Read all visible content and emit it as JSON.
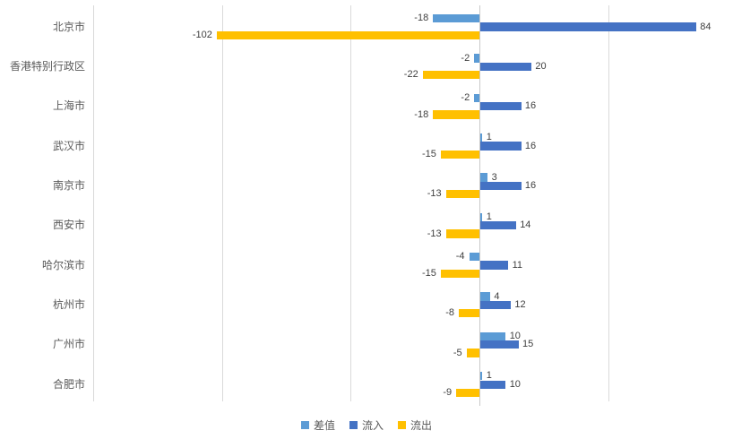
{
  "chart_data": {
    "type": "bar",
    "orientation": "horizontal",
    "title": "",
    "categories": [
      "北京市",
      "香港特别行政区",
      "上海市",
      "武汉市",
      "南京市",
      "西安市",
      "哈尔滨市",
      "杭州市",
      "广州市",
      "合肥市"
    ],
    "series": [
      {
        "name": "差值",
        "color": "#5B9BD5",
        "values": [
          -18,
          -2,
          -2,
          1,
          3,
          1,
          -4,
          4,
          10,
          1
        ]
      },
      {
        "name": "流入",
        "color": "#4472C4",
        "values": [
          84,
          20,
          16,
          16,
          16,
          14,
          11,
          12,
          15,
          10
        ]
      },
      {
        "name": "流出",
        "color": "#FFC000",
        "values": [
          -102,
          -22,
          -18,
          -15,
          -13,
          -13,
          -15,
          -8,
          -5,
          -9
        ]
      }
    ],
    "data_labels_shown": true,
    "value_axis": {
      "min": -150,
      "max": 100,
      "gridline_interval": 50,
      "gridlines_at": [
        -150,
        -100,
        -50,
        0,
        50
      ],
      "tick_labels_shown": false
    },
    "legend": {
      "position": "bottom",
      "entries": [
        "差值",
        "流入",
        "流出"
      ]
    },
    "colors": {
      "gridline": "#D9D9D9",
      "axis_line": "#C9C9C9",
      "data_label_text": "#404040",
      "category_text": "#595959"
    },
    "grid": "vertical-only"
  }
}
